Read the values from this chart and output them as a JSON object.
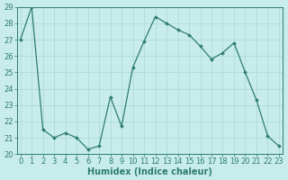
{
  "x": [
    0,
    1,
    2,
    3,
    4,
    5,
    6,
    7,
    8,
    9,
    10,
    11,
    12,
    13,
    14,
    15,
    16,
    17,
    18,
    19,
    20,
    21,
    22,
    23
  ],
  "y": [
    27.0,
    29.0,
    21.5,
    21.0,
    21.3,
    21.0,
    20.3,
    20.5,
    23.5,
    21.7,
    25.3,
    26.9,
    28.4,
    28.0,
    27.6,
    27.3,
    26.6,
    25.8,
    26.2,
    26.8,
    25.0,
    23.3,
    21.1,
    20.5
  ],
  "line_color": "#2e7d6e",
  "marker": "D",
  "marker_size": 2.0,
  "bg_color": "#c8ecec",
  "grid_color": "#a8d8d0",
  "xlabel": "Humidex (Indice chaleur)",
  "ylim": [
    20,
    29
  ],
  "yticks": [
    20,
    21,
    22,
    23,
    24,
    25,
    26,
    27,
    28,
    29
  ],
  "xticks": [
    0,
    1,
    2,
    3,
    4,
    5,
    6,
    7,
    8,
    9,
    10,
    11,
    12,
    13,
    14,
    15,
    16,
    17,
    18,
    19,
    20,
    21,
    22,
    23
  ],
  "tick_color": "#2e7d6e",
  "axis_color": "#2e7d6e",
  "xlabel_fontsize": 7,
  "tick_fontsize": 6,
  "linewidth": 0.9
}
